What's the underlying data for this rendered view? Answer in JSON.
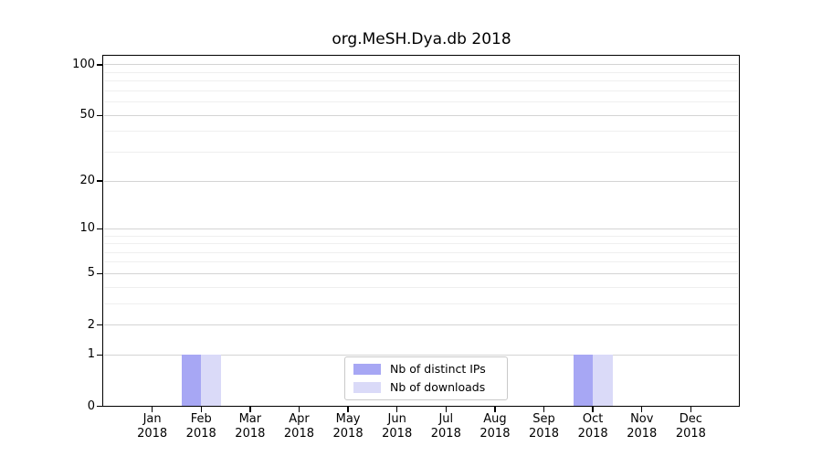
{
  "chart_data": {
    "type": "bar",
    "title": "org.MeSH.Dya.db 2018",
    "x": {
      "categories": [
        "Jan",
        "Feb",
        "Mar",
        "Apr",
        "May",
        "Jun",
        "Jul",
        "Aug",
        "Sep",
        "Oct",
        "Nov",
        "Dec"
      ],
      "year_label": "2018"
    },
    "y": {
      "scale": "log1p",
      "tick_values": [
        0,
        1,
        2,
        5,
        10,
        20,
        50,
        100
      ],
      "minor_tick_values": [
        3,
        4,
        6,
        7,
        8,
        9,
        30,
        40,
        60,
        70,
        80,
        90
      ],
      "ylim": [
        0,
        113
      ],
      "grid": "on"
    },
    "series": [
      {
        "name": "Nb of distinct IPs",
        "color": "#a7a7f4",
        "values": [
          0,
          1,
          0,
          0,
          0,
          0,
          0,
          0,
          0,
          1,
          0,
          0
        ]
      },
      {
        "name": "Nb of downloads",
        "color": "#dadaf8",
        "values": [
          0,
          1,
          0,
          0,
          0,
          0,
          0,
          0,
          0,
          1,
          0,
          0
        ]
      }
    ],
    "legend_position": "inside-bottom-center",
    "colors": {
      "major_grid": "#d4d4d4",
      "minor_grid": "#efefef",
      "spine": "#000000",
      "text": "#000000",
      "background": "#ffffff"
    }
  }
}
